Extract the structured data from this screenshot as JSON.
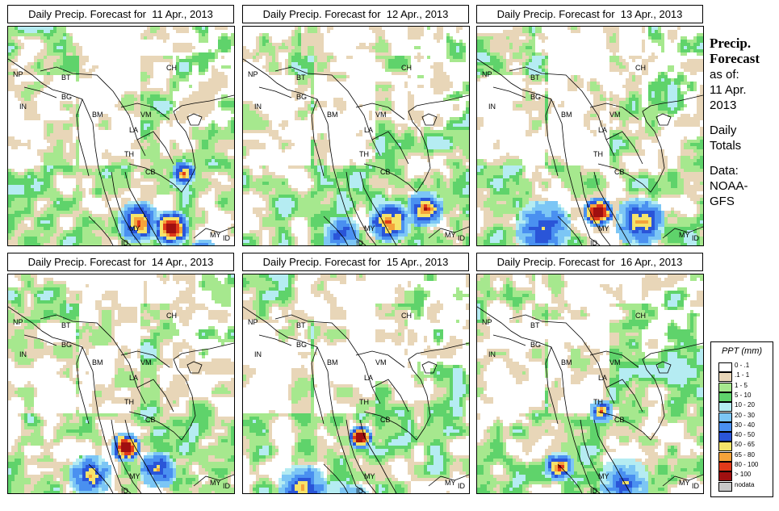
{
  "panels": [
    {
      "title": "Daily Precip. Forecast for  11 Apr., 2013"
    },
    {
      "title": "Daily Precip. Forecast for  12 Apr., 2013"
    },
    {
      "title": "Daily Precip. Forecast for  13 Apr., 2013"
    },
    {
      "title": "Daily Precip. Forecast for  14 Apr., 2013"
    },
    {
      "title": "Daily Precip. Forecast for  15 Apr., 2013"
    },
    {
      "title": "Daily Precip. Forecast for  16 Apr., 2013"
    }
  ],
  "country_labels": {
    "np": "NP",
    "bt": "BT",
    "ch": "CH",
    "in": "IN",
    "bg": "BG",
    "bm": "BM",
    "vm": "VM",
    "la": "LA",
    "th": "TH",
    "cb": "CB",
    "my": "MY",
    "id": "ID"
  },
  "sidebar": {
    "title_line1": "Precip.",
    "title_line2": "Forecast",
    "asof": "as of:",
    "date_line1": "11 Apr.",
    "date_line2": "2013",
    "daily_line1": "Daily",
    "daily_line2": "Totals",
    "data_line1": "Data:",
    "data_line2": "NOAA-",
    "data_line3": "GFS"
  },
  "legend": {
    "title": "PPT (mm)",
    "items": [
      {
        "label": "0 - .1",
        "color": "#ffffff"
      },
      {
        "label": ".1 - 1",
        "color": "#e8d6b8"
      },
      {
        "label": "1 - 5",
        "color": "#a6e88e"
      },
      {
        "label": "5 - 10",
        "color": "#5fd36b"
      },
      {
        "label": "10 - 20",
        "color": "#b5ecf2"
      },
      {
        "label": "20 - 30",
        "color": "#7cc6f5"
      },
      {
        "label": "30 - 40",
        "color": "#4a90f0"
      },
      {
        "label": "40 - 50",
        "color": "#2a55d8"
      },
      {
        "label": "50 - 65",
        "color": "#f5e36a"
      },
      {
        "label": "65 - 80",
        "color": "#f5a33a"
      },
      {
        "label": "80 - 100",
        "color": "#e03a1a"
      },
      {
        "label": "> 100",
        "color": "#a01010"
      },
      {
        "label": "nodata",
        "color": "#c8c8c8"
      }
    ]
  }
}
